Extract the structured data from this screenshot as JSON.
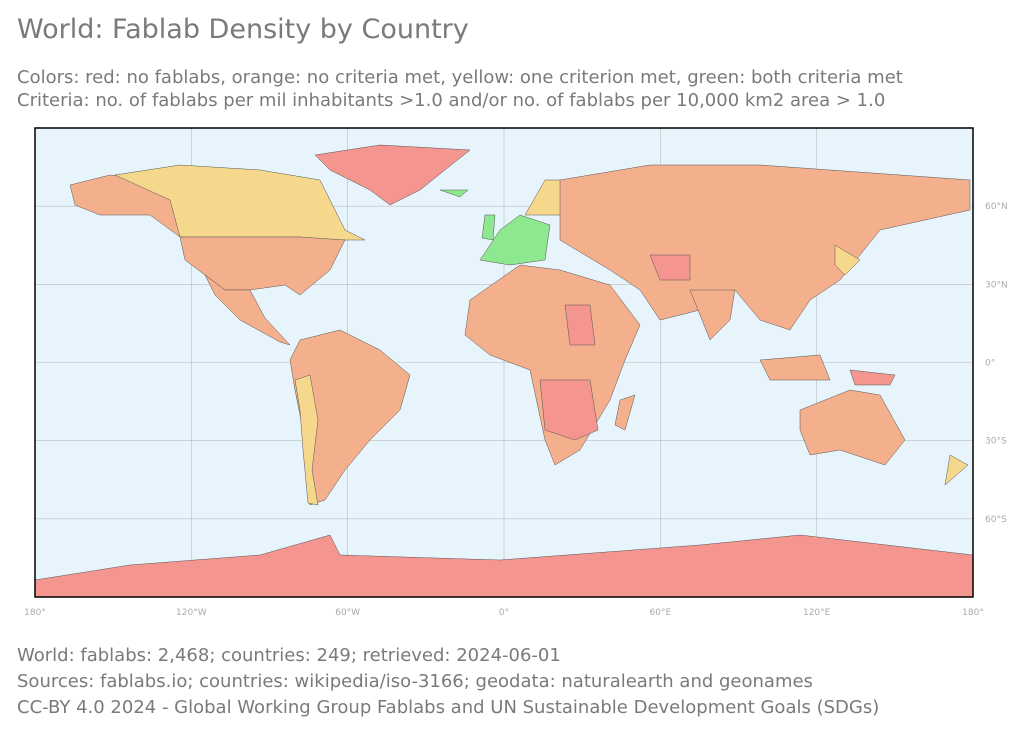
{
  "header": {
    "title": "World: Fablab Density by Country",
    "subtitle": [
      "Colors: red: no fablabs, orange: no criteria met, yellow: one criterion met, green: both criteria met",
      "Criteria: no. of fablabs per mil inhabitants >1.0 and/or no. of fablabs per 10,000 km2 area > 1.0"
    ]
  },
  "map": {
    "lon_labels": [
      "180°",
      "120°W",
      "60°W",
      "0°",
      "60°E",
      "120°E",
      "180°"
    ],
    "lat_labels": [
      "60°N",
      "30°N",
      "0°",
      "30°S",
      "60°S"
    ]
  },
  "footer": [
    "World: fablabs: 2,468; countries: 249; retrieved: 2024-06-01",
    "Sources: fablabs.io; countries: wikipedia/iso-3166; geodata: naturalearth and geonames",
    "CC-BY 4.0 2024 - Global Working Group Fablabs and UN Sustainable Development Goals (SDGs)"
  ]
}
